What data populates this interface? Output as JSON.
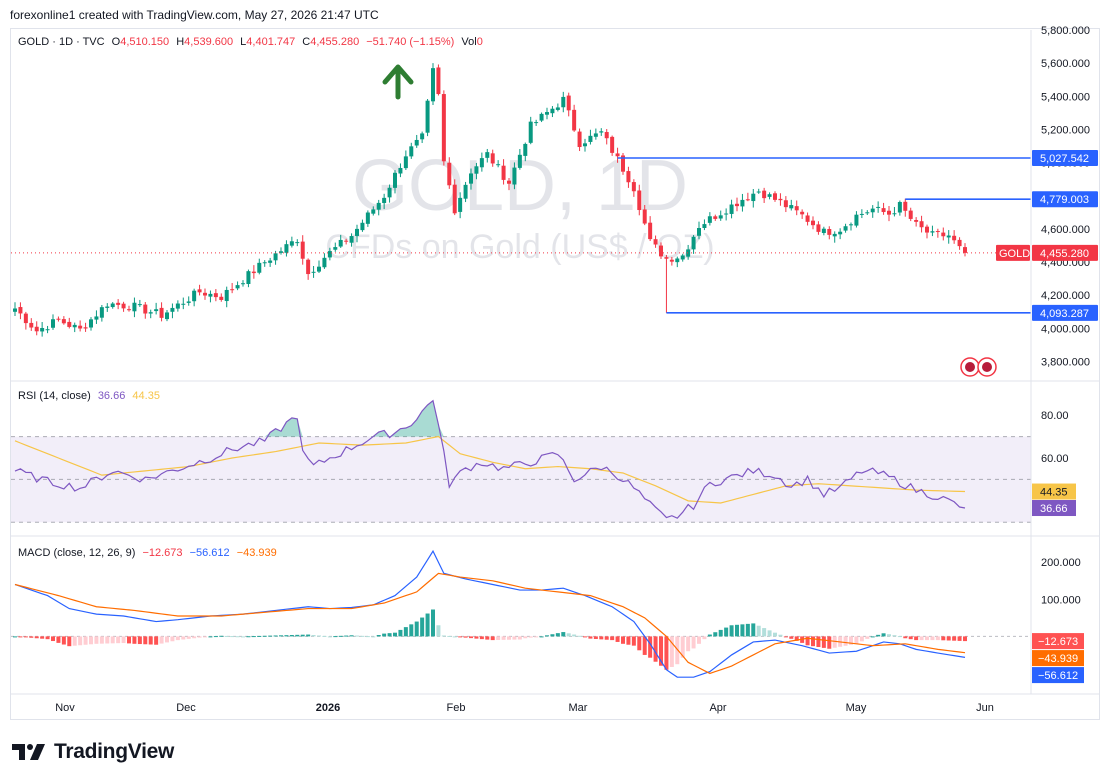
{
  "header": {
    "credit": "forexonline1 created with TradingView.com, May 27, 2026 21:47 UTC"
  },
  "price_legend": {
    "symbol": "GOLD · 1D · TVC",
    "open_label": "O",
    "open": "4,510.150",
    "high_label": "H",
    "high": "4,539.600",
    "low_label": "L",
    "low": "4,401.747",
    "close_label": "C",
    "close": "4,455.280",
    "change": "−51.740 (−1.15%)",
    "vol_label": "Vol",
    "vol": "0"
  },
  "watermark": {
    "line1": "GOLD, 1D",
    "line2": "CFDs on Gold (US$ / OZ)"
  },
  "rsi_legend": {
    "name": "RSI (14, close)",
    "rsi": "36.66",
    "ma": "44.35"
  },
  "macd_legend": {
    "name": "MACD (close, 12, 26, 9)",
    "hist": "−12.673",
    "macd": "−56.612",
    "signal": "−43.939"
  },
  "footer": {
    "brand": "TradingView"
  },
  "colors": {
    "up": "#089981",
    "down": "#f23645",
    "rsi": "#7e57c2",
    "rsi_ma": "#f7c548",
    "macd": "#2962ff",
    "signal": "#ff6d00",
    "hline": "#2962ff",
    "arrow": "#2e7d32"
  },
  "chart_data": [
    {
      "type": "candlestick",
      "title": "GOLD · 1D · TVC",
      "x_ticks": [
        "Nov",
        "Dec",
        "2026",
        "Feb",
        "Mar",
        "Apr",
        "May",
        "Jun"
      ],
      "y_ticks": [
        "3,800.000",
        "4,000.000",
        "4,200.000",
        "4,400.000",
        "4,600.000",
        "4,800.000",
        "5,000.000",
        "5,200.000",
        "5,400.000",
        "5,600.000",
        "5,800.000"
      ],
      "ylim": [
        3700,
        5800
      ],
      "price_labels": [
        {
          "label": "GOLD",
          "value": 4455.28,
          "text": "4,455.280"
        },
        {
          "value": 5027.542,
          "text": "5,027.542"
        },
        {
          "value": 4779.003,
          "text": "4,779.003"
        },
        {
          "value": 4093.287,
          "text": "4,093.287"
        }
      ],
      "horizontal_lines": [
        {
          "value": 5027.542,
          "from": 111,
          "to": 175
        },
        {
          "value": 4779.003,
          "from": 164,
          "to": 175
        },
        {
          "value": 4093.287,
          "from": 120,
          "to": 175
        }
      ],
      "anchors": [
        {
          "index": 0,
          "value": 4120
        },
        {
          "index": 4,
          "value": 3985
        },
        {
          "index": 8,
          "value": 4050
        },
        {
          "index": 12,
          "value": 3990
        },
        {
          "index": 17,
          "value": 4150
        },
        {
          "index": 22,
          "value": 4130
        },
        {
          "index": 27,
          "value": 4080
        },
        {
          "index": 34,
          "value": 4220
        },
        {
          "index": 38,
          "value": 4190
        },
        {
          "index": 46,
          "value": 4400
        },
        {
          "index": 52,
          "value": 4540
        },
        {
          "index": 54,
          "value": 4330
        },
        {
          "index": 57,
          "value": 4430
        },
        {
          "index": 62,
          "value": 4560
        },
        {
          "index": 68,
          "value": 4800
        },
        {
          "index": 72,
          "value": 5050
        },
        {
          "index": 75,
          "value": 5150
        },
        {
          "index": 77,
          "value": 5550
        },
        {
          "index": 78,
          "value": 5400
        },
        {
          "index": 79,
          "value": 5000
        },
        {
          "index": 81,
          "value": 4720
        },
        {
          "index": 84,
          "value": 4950
        },
        {
          "index": 87,
          "value": 5050
        },
        {
          "index": 91,
          "value": 4880
        },
        {
          "index": 95,
          "value": 5220
        },
        {
          "index": 101,
          "value": 5380
        },
        {
          "index": 104,
          "value": 5120
        },
        {
          "index": 108,
          "value": 5180
        },
        {
          "index": 111,
          "value": 5020
        },
        {
          "index": 114,
          "value": 4850
        },
        {
          "index": 117,
          "value": 4520
        },
        {
          "index": 120,
          "value": 4420
        },
        {
          "index": 123,
          "value": 4440
        },
        {
          "index": 126,
          "value": 4620
        },
        {
          "index": 130,
          "value": 4700
        },
        {
          "index": 134,
          "value": 4780
        },
        {
          "index": 137,
          "value": 4830
        },
        {
          "index": 141,
          "value": 4760
        },
        {
          "index": 145,
          "value": 4680
        },
        {
          "index": 149,
          "value": 4580
        },
        {
          "index": 152,
          "value": 4600
        },
        {
          "index": 155,
          "value": 4680
        },
        {
          "index": 158,
          "value": 4720
        },
        {
          "index": 161,
          "value": 4690
        },
        {
          "index": 163,
          "value": 4740
        },
        {
          "index": 166,
          "value": 4620
        },
        {
          "index": 169,
          "value": 4560
        },
        {
          "index": 172,
          "value": 4560
        },
        {
          "index": 174,
          "value": 4480
        },
        {
          "index": 175,
          "value": 4455
        }
      ],
      "extremes": [
        {
          "index": 77,
          "high": 5600
        },
        {
          "index": 120,
          "low": 4093
        }
      ]
    },
    {
      "type": "line",
      "title": "RSI (14, close)",
      "y_ticks": [
        "60.00",
        "80.00"
      ],
      "ylim": [
        25,
        95
      ],
      "bands": [
        30,
        50,
        70
      ],
      "series": [
        {
          "name": "RSI",
          "value_label": "36.66",
          "anchors": [
            [
              0,
              54
            ],
            [
              6,
              49
            ],
            [
              12,
              46
            ],
            [
              18,
              54
            ],
            [
              24,
              50
            ],
            [
              30,
              55
            ],
            [
              36,
              60
            ],
            [
              40,
              64
            ],
            [
              46,
              68
            ],
            [
              52,
              80
            ],
            [
              53,
              62
            ],
            [
              55,
              56
            ],
            [
              58,
              60
            ],
            [
              62,
              65
            ],
            [
              66,
              70
            ],
            [
              70,
              72
            ],
            [
              74,
              78
            ],
            [
              77,
              88
            ],
            [
              78,
              75
            ],
            [
              80,
              48
            ],
            [
              83,
              55
            ],
            [
              86,
              58
            ],
            [
              90,
              55
            ],
            [
              95,
              58
            ],
            [
              100,
              62
            ],
            [
              103,
              50
            ],
            [
              108,
              56
            ],
            [
              111,
              52
            ],
            [
              114,
              46
            ],
            [
              117,
              38
            ],
            [
              120,
              31
            ],
            [
              122,
              33
            ],
            [
              125,
              38
            ],
            [
              128,
              48
            ],
            [
              132,
              51
            ],
            [
              136,
              54
            ],
            [
              140,
              52
            ],
            [
              143,
              47
            ],
            [
              146,
              50
            ],
            [
              149,
              43
            ],
            [
              152,
              46
            ],
            [
              156,
              54
            ],
            [
              159,
              53
            ],
            [
              162,
              50
            ],
            [
              166,
              45
            ],
            [
              170,
              42
            ],
            [
              175,
              36.66
            ]
          ]
        },
        {
          "name": "RSI MA",
          "value_label": "44.35",
          "anchors": [
            [
              0,
              68
            ],
            [
              8,
              60
            ],
            [
              16,
              52
            ],
            [
              24,
              54
            ],
            [
              32,
              56
            ],
            [
              40,
              60
            ],
            [
              48,
              63
            ],
            [
              56,
              67
            ],
            [
              64,
              66
            ],
            [
              72,
              67
            ],
            [
              78,
              70
            ],
            [
              82,
              62
            ],
            [
              88,
              58
            ],
            [
              94,
              55
            ],
            [
              100,
              56
            ],
            [
              106,
              55
            ],
            [
              112,
              53
            ],
            [
              118,
              47
            ],
            [
              124,
              40
            ],
            [
              130,
              39
            ],
            [
              136,
              43
            ],
            [
              142,
              47
            ],
            [
              148,
              48
            ],
            [
              154,
              47
            ],
            [
              160,
              46
            ],
            [
              166,
              45
            ],
            [
              175,
              44.35
            ]
          ]
        }
      ]
    },
    {
      "type": "bar",
      "title": "MACD (close, 12, 26, 9)",
      "y_ticks": [
        "100.000",
        "200.000"
      ],
      "ylim": [
        -150,
        260
      ],
      "series": [
        {
          "name": "MACD",
          "value_label": "−56.612",
          "anchors": [
            [
              0,
              140
            ],
            [
              6,
              110
            ],
            [
              10,
              75
            ],
            [
              15,
              60
            ],
            [
              20,
              55
            ],
            [
              26,
              40
            ],
            [
              30,
              45
            ],
            [
              36,
              55
            ],
            [
              42,
              60
            ],
            [
              48,
              70
            ],
            [
              54,
              80
            ],
            [
              58,
              75
            ],
            [
              62,
              78
            ],
            [
              66,
              85
            ],
            [
              70,
              110
            ],
            [
              74,
              160
            ],
            [
              77,
              230
            ],
            [
              79,
              170
            ],
            [
              83,
              155
            ],
            [
              88,
              140
            ],
            [
              93,
              125
            ],
            [
              97,
              125
            ],
            [
              101,
              130
            ],
            [
              105,
              110
            ],
            [
              110,
              80
            ],
            [
              114,
              40
            ],
            [
              117,
              -20
            ],
            [
              120,
              -90
            ],
            [
              122,
              -110
            ],
            [
              125,
              -110
            ],
            [
              128,
              -95
            ],
            [
              132,
              -50
            ],
            [
              136,
              -15
            ],
            [
              140,
              -10
            ],
            [
              145,
              -25
            ],
            [
              150,
              -45
            ],
            [
              155,
              -40
            ],
            [
              160,
              -15
            ],
            [
              163,
              -20
            ],
            [
              166,
              -35
            ],
            [
              170,
              -45
            ],
            [
              175,
              -56.6
            ]
          ]
        },
        {
          "name": "Signal",
          "value_label": "−43.939",
          "anchors": [
            [
              0,
              140
            ],
            [
              8,
              110
            ],
            [
              15,
              80
            ],
            [
              22,
              70
            ],
            [
              30,
              55
            ],
            [
              38,
              55
            ],
            [
              46,
              65
            ],
            [
              54,
              75
            ],
            [
              62,
              75
            ],
            [
              68,
              90
            ],
            [
              74,
              120
            ],
            [
              78,
              170
            ],
            [
              82,
              160
            ],
            [
              88,
              150
            ],
            [
              94,
              130
            ],
            [
              100,
              120
            ],
            [
              106,
              110
            ],
            [
              112,
              80
            ],
            [
              116,
              50
            ],
            [
              120,
              0
            ],
            [
              124,
              -70
            ],
            [
              128,
              -100
            ],
            [
              132,
              -80
            ],
            [
              136,
              -50
            ],
            [
              140,
              -20
            ],
            [
              146,
              -5
            ],
            [
              152,
              -15
            ],
            [
              158,
              -25
            ],
            [
              164,
              -20
            ],
            [
              170,
              -35
            ],
            [
              175,
              -43.9
            ]
          ]
        },
        {
          "name": "Histogram",
          "value_label": "−12.673"
        }
      ]
    }
  ]
}
